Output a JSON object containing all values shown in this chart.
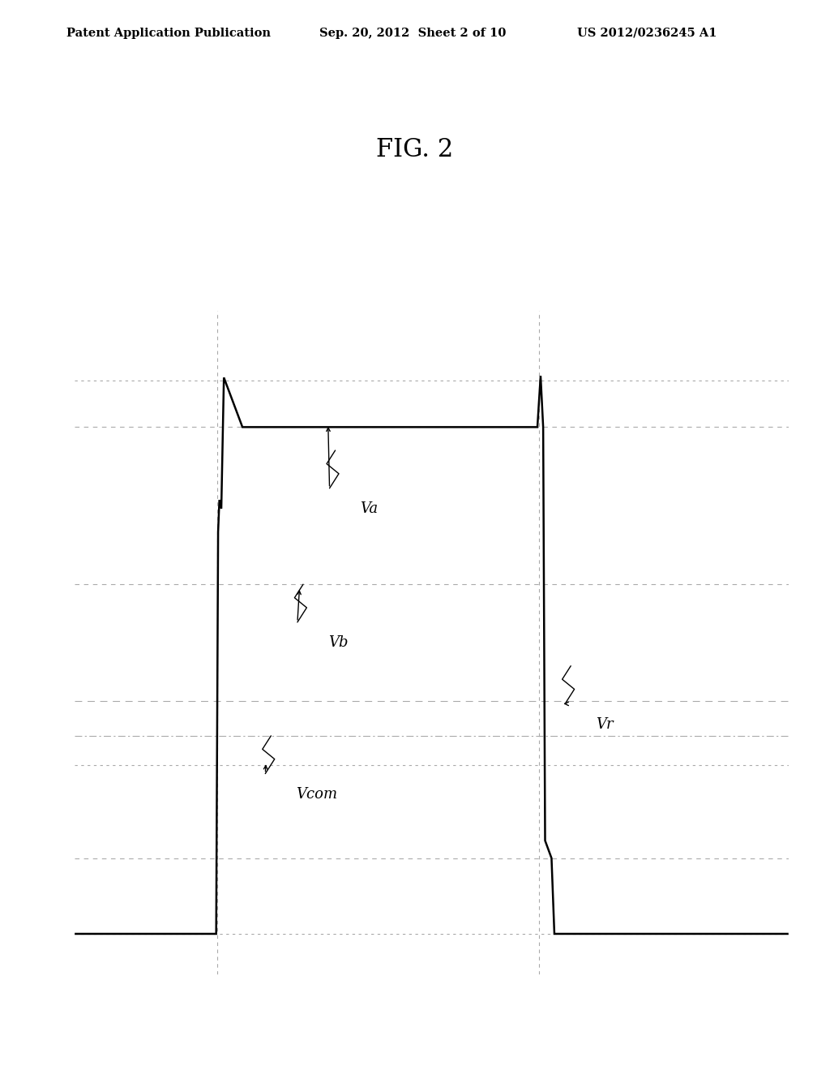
{
  "header_left": "Patent Application Publication",
  "header_center": "Sep. 20, 2012  Sheet 2 of 10",
  "header_right": "US 2012/0236245 A1",
  "title": "FIG. 2",
  "bg": "#ffffff",
  "lc": "#000000",
  "dc": "#aaaaaa",
  "Va": 10.0,
  "Va_plateau": 9.2,
  "Vb_blip": 7.8,
  "Vb": 6.5,
  "Vr": 4.5,
  "Vcom_dd": 3.9,
  "Vcom_dt": 3.4,
  "Vlow1": 1.8,
  "Vlow2": 0.5,
  "ymin": -0.2,
  "ymax": 11.2,
  "xmin": 0.0,
  "xmax": 10.0,
  "t0": 0.0,
  "t1": 2.0,
  "t2": 6.5,
  "tend": 10.0
}
